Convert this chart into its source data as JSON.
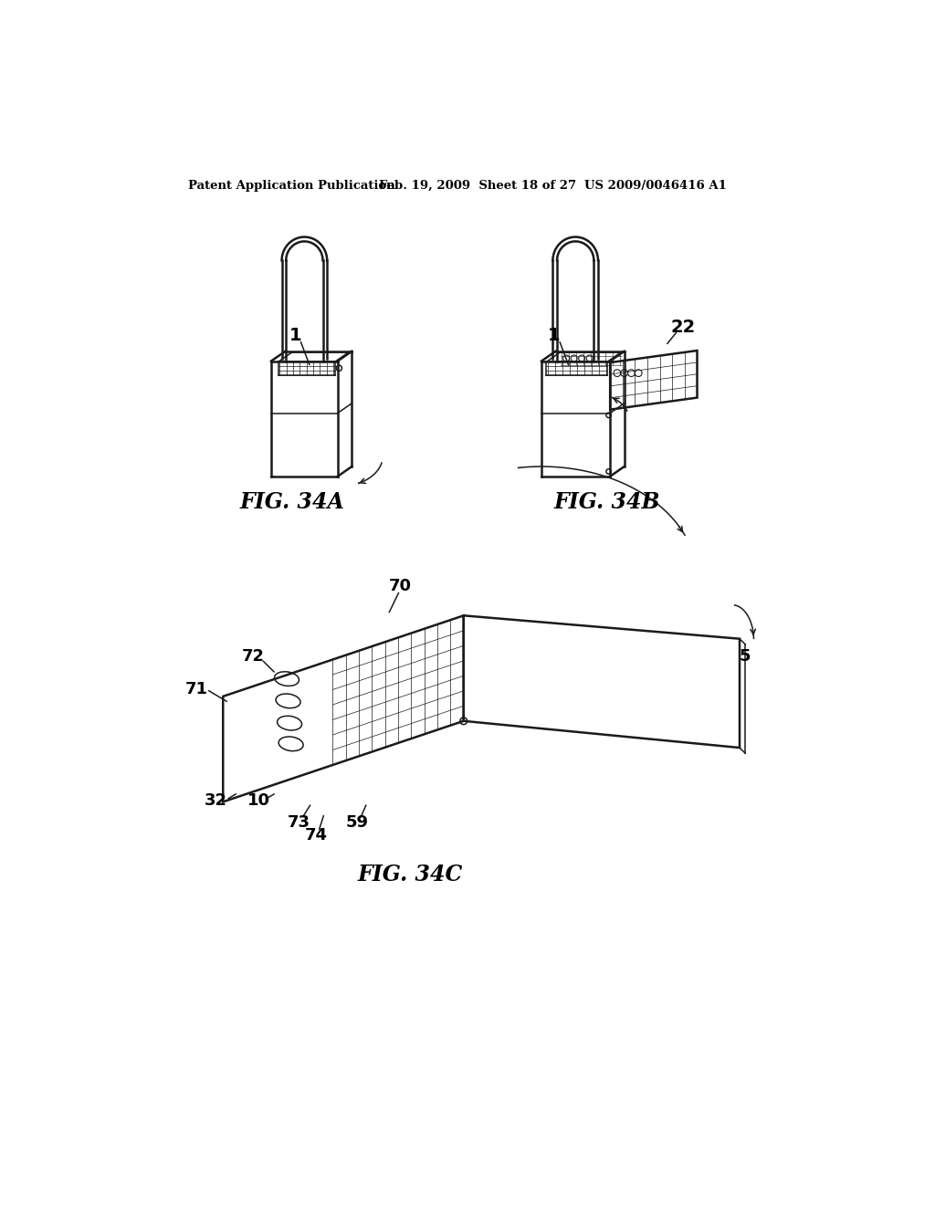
{
  "bg_color": "#ffffff",
  "header_left": "Patent Application Publication",
  "header_mid": "Feb. 19, 2009  Sheet 18 of 27",
  "header_right": "US 2009/0046416 A1",
  "fig34a_label": "FIG. 34A",
  "fig34b_label": "FIG. 34B",
  "fig34c_label": "FIG. 34C",
  "ref_1a": "1",
  "ref_1b": "1",
  "ref_22": "22",
  "ref_70": "70",
  "ref_71": "71",
  "ref_72": "72",
  "ref_5": "5",
  "ref_32": "32",
  "ref_10": "10",
  "ref_73": "73",
  "ref_74": "74",
  "ref_59": "59"
}
